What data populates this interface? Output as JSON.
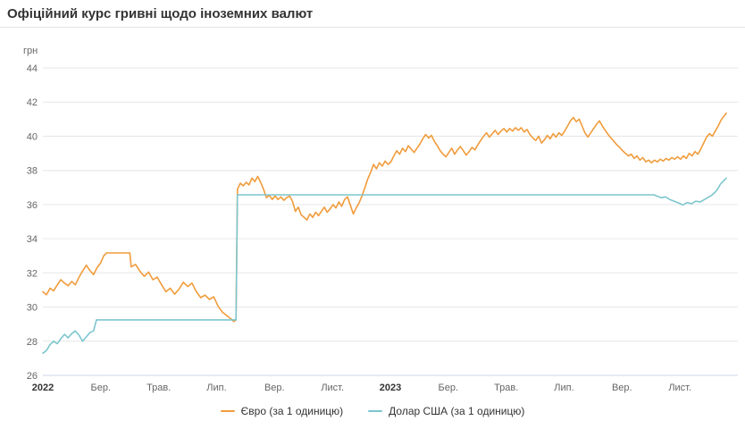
{
  "header": {
    "title": "Офіційний курс гривні щодо іноземних валют"
  },
  "chart_data": {
    "type": "line",
    "title": "Офіційний курс гривні щодо іноземних валют",
    "unit_label": "грн",
    "ylabel": "грн",
    "ylim": [
      26,
      44
    ],
    "yticks": [
      26,
      28,
      30,
      32,
      34,
      36,
      38,
      40,
      42,
      44
    ],
    "xlim_months": [
      0,
      24
    ],
    "grid": true,
    "legend_position": "bottom",
    "xticks": [
      {
        "pos": 0,
        "label": "2022",
        "is_year": true
      },
      {
        "pos": 2,
        "label": "Бер."
      },
      {
        "pos": 4,
        "label": "Трав."
      },
      {
        "pos": 6,
        "label": "Лип."
      },
      {
        "pos": 8,
        "label": "Вер."
      },
      {
        "pos": 10,
        "label": "Лист."
      },
      {
        "pos": 12,
        "label": "2023",
        "is_year": true
      },
      {
        "pos": 14,
        "label": "Бер."
      },
      {
        "pos": 16,
        "label": "Трав."
      },
      {
        "pos": 18,
        "label": "Лип."
      },
      {
        "pos": 20,
        "label": "Вер."
      },
      {
        "pos": 22,
        "label": "Лист."
      }
    ],
    "series": [
      {
        "name": "Євро (за 1 одиницю)",
        "color": "#f09c3c",
        "points": [
          [
            0,
            30.9
          ],
          [
            0.12,
            30.72
          ],
          [
            0.25,
            31.1
          ],
          [
            0.37,
            30.95
          ],
          [
            0.5,
            31.3
          ],
          [
            0.62,
            31.6
          ],
          [
            0.75,
            31.4
          ],
          [
            0.87,
            31.25
          ],
          [
            1,
            31.5
          ],
          [
            1.12,
            31.3
          ],
          [
            1.25,
            31.75
          ],
          [
            1.37,
            32.1
          ],
          [
            1.5,
            32.45
          ],
          [
            1.62,
            32.15
          ],
          [
            1.75,
            31.9
          ],
          [
            1.87,
            32.3
          ],
          [
            2,
            32.6
          ],
          [
            2.1,
            33
          ],
          [
            2.2,
            33.17
          ],
          [
            3,
            33.17
          ],
          [
            3.05,
            32.35
          ],
          [
            3.2,
            32.5
          ],
          [
            3.35,
            32.1
          ],
          [
            3.5,
            31.8
          ],
          [
            3.65,
            32.05
          ],
          [
            3.8,
            31.6
          ],
          [
            3.95,
            31.75
          ],
          [
            4.1,
            31.3
          ],
          [
            4.25,
            30.9
          ],
          [
            4.4,
            31.1
          ],
          [
            4.55,
            30.75
          ],
          [
            4.7,
            31.05
          ],
          [
            4.85,
            31.45
          ],
          [
            5,
            31.2
          ],
          [
            5.15,
            31.4
          ],
          [
            5.3,
            30.9
          ],
          [
            5.45,
            30.55
          ],
          [
            5.6,
            30.7
          ],
          [
            5.75,
            30.45
          ],
          [
            5.9,
            30.6
          ],
          [
            6.05,
            30.05
          ],
          [
            6.2,
            29.7
          ],
          [
            6.35,
            29.5
          ],
          [
            6.5,
            29.3
          ],
          [
            6.6,
            29.15
          ],
          [
            6.67,
            29.25
          ],
          [
            6.72,
            36.9
          ],
          [
            6.82,
            37.25
          ],
          [
            6.92,
            37.1
          ],
          [
            7.02,
            37.3
          ],
          [
            7.12,
            37.15
          ],
          [
            7.22,
            37.55
          ],
          [
            7.32,
            37.35
          ],
          [
            7.42,
            37.65
          ],
          [
            7.52,
            37.3
          ],
          [
            7.62,
            36.9
          ],
          [
            7.72,
            36.4
          ],
          [
            7.82,
            36.55
          ],
          [
            7.92,
            36.3
          ],
          [
            8.02,
            36.5
          ],
          [
            8.12,
            36.3
          ],
          [
            8.22,
            36.45
          ],
          [
            8.32,
            36.25
          ],
          [
            8.42,
            36.4
          ],
          [
            8.52,
            36.5
          ],
          [
            8.62,
            36.2
          ],
          [
            8.72,
            35.6
          ],
          [
            8.82,
            35.85
          ],
          [
            8.92,
            35.4
          ],
          [
            9.02,
            35.25
          ],
          [
            9.12,
            35.1
          ],
          [
            9.22,
            35.45
          ],
          [
            9.32,
            35.25
          ],
          [
            9.42,
            35.55
          ],
          [
            9.52,
            35.35
          ],
          [
            9.62,
            35.6
          ],
          [
            9.72,
            35.85
          ],
          [
            9.82,
            35.55
          ],
          [
            9.92,
            35.75
          ],
          [
            10.02,
            36
          ],
          [
            10.12,
            35.8
          ],
          [
            10.22,
            36.15
          ],
          [
            10.32,
            35.9
          ],
          [
            10.42,
            36.3
          ],
          [
            10.52,
            36.45
          ],
          [
            10.62,
            35.95
          ],
          [
            10.72,
            35.45
          ],
          [
            10.82,
            35.8
          ],
          [
            10.92,
            36.1
          ],
          [
            11.02,
            36.5
          ],
          [
            11.12,
            37
          ],
          [
            11.22,
            37.5
          ],
          [
            11.32,
            37.9
          ],
          [
            11.42,
            38.35
          ],
          [
            11.52,
            38.1
          ],
          [
            11.62,
            38.45
          ],
          [
            11.72,
            38.25
          ],
          [
            11.82,
            38.55
          ],
          [
            11.92,
            38.35
          ],
          [
            12.02,
            38.5
          ],
          [
            12.12,
            38.85
          ],
          [
            12.22,
            39.15
          ],
          [
            12.32,
            38.95
          ],
          [
            12.42,
            39.3
          ],
          [
            12.52,
            39.1
          ],
          [
            12.62,
            39.45
          ],
          [
            12.72,
            39.25
          ],
          [
            12.82,
            39.05
          ],
          [
            12.92,
            39.3
          ],
          [
            13.02,
            39.55
          ],
          [
            13.12,
            39.85
          ],
          [
            13.22,
            40.1
          ],
          [
            13.32,
            39.9
          ],
          [
            13.42,
            40.05
          ],
          [
            13.52,
            39.7
          ],
          [
            13.62,
            39.45
          ],
          [
            13.72,
            39.15
          ],
          [
            13.82,
            38.95
          ],
          [
            13.92,
            38.8
          ],
          [
            14.02,
            39.05
          ],
          [
            14.12,
            39.3
          ],
          [
            14.22,
            38.95
          ],
          [
            14.32,
            39.2
          ],
          [
            14.42,
            39.4
          ],
          [
            14.52,
            39.15
          ],
          [
            14.62,
            38.9
          ],
          [
            14.72,
            39.1
          ],
          [
            14.82,
            39.35
          ],
          [
            14.92,
            39.2
          ],
          [
            15.02,
            39.5
          ],
          [
            15.12,
            39.75
          ],
          [
            15.22,
            40
          ],
          [
            15.32,
            40.2
          ],
          [
            15.42,
            39.95
          ],
          [
            15.52,
            40.15
          ],
          [
            15.62,
            40.35
          ],
          [
            15.72,
            40.1
          ],
          [
            15.82,
            40.3
          ],
          [
            15.92,
            40.45
          ],
          [
            16.02,
            40.25
          ],
          [
            16.12,
            40.45
          ],
          [
            16.22,
            40.3
          ],
          [
            16.32,
            40.5
          ],
          [
            16.42,
            40.35
          ],
          [
            16.52,
            40.5
          ],
          [
            16.62,
            40.25
          ],
          [
            16.72,
            40.4
          ],
          [
            16.82,
            40.1
          ],
          [
            16.92,
            39.9
          ],
          [
            17.02,
            39.75
          ],
          [
            17.12,
            40
          ],
          [
            17.22,
            39.6
          ],
          [
            17.32,
            39.8
          ],
          [
            17.42,
            40.05
          ],
          [
            17.52,
            39.85
          ],
          [
            17.62,
            40.15
          ],
          [
            17.72,
            39.95
          ],
          [
            17.82,
            40.2
          ],
          [
            17.92,
            40.05
          ],
          [
            18.02,
            40.3
          ],
          [
            18.12,
            40.6
          ],
          [
            18.22,
            40.9
          ],
          [
            18.32,
            41.1
          ],
          [
            18.42,
            40.85
          ],
          [
            18.52,
            41
          ],
          [
            18.62,
            40.6
          ],
          [
            18.72,
            40.2
          ],
          [
            18.82,
            39.95
          ],
          [
            18.92,
            40.2
          ],
          [
            19.02,
            40.45
          ],
          [
            19.12,
            40.7
          ],
          [
            19.22,
            40.9
          ],
          [
            19.32,
            40.6
          ],
          [
            19.42,
            40.35
          ],
          [
            19.52,
            40.1
          ],
          [
            19.62,
            39.9
          ],
          [
            19.72,
            39.7
          ],
          [
            19.82,
            39.5
          ],
          [
            19.92,
            39.35
          ],
          [
            20.02,
            39.15
          ],
          [
            20.12,
            39
          ],
          [
            20.22,
            38.85
          ],
          [
            20.32,
            38.95
          ],
          [
            20.42,
            38.7
          ],
          [
            20.52,
            38.85
          ],
          [
            20.62,
            38.6
          ],
          [
            20.72,
            38.75
          ],
          [
            20.82,
            38.5
          ],
          [
            20.92,
            38.6
          ],
          [
            21.02,
            38.45
          ],
          [
            21.12,
            38.6
          ],
          [
            21.22,
            38.5
          ],
          [
            21.32,
            38.65
          ],
          [
            21.42,
            38.55
          ],
          [
            21.52,
            38.7
          ],
          [
            21.62,
            38.6
          ],
          [
            21.72,
            38.75
          ],
          [
            21.82,
            38.65
          ],
          [
            21.92,
            38.8
          ],
          [
            22.02,
            38.65
          ],
          [
            22.12,
            38.85
          ],
          [
            22.22,
            38.7
          ],
          [
            22.32,
            39
          ],
          [
            22.42,
            38.85
          ],
          [
            22.52,
            39.1
          ],
          [
            22.62,
            38.95
          ],
          [
            22.72,
            39.25
          ],
          [
            22.82,
            39.6
          ],
          [
            22.92,
            39.95
          ],
          [
            23.02,
            40.15
          ],
          [
            23.12,
            40
          ],
          [
            23.22,
            40.3
          ],
          [
            23.32,
            40.6
          ],
          [
            23.42,
            40.95
          ],
          [
            23.6,
            41.35
          ]
        ]
      },
      {
        "name": "Долар США (за 1 одиницю)",
        "color": "#7cc6ce",
        "points": [
          [
            0,
            27.3
          ],
          [
            0.12,
            27.45
          ],
          [
            0.25,
            27.8
          ],
          [
            0.37,
            28
          ],
          [
            0.5,
            27.85
          ],
          [
            0.62,
            28.15
          ],
          [
            0.75,
            28.4
          ],
          [
            0.87,
            28.2
          ],
          [
            1,
            28.45
          ],
          [
            1.12,
            28.6
          ],
          [
            1.25,
            28.35
          ],
          [
            1.37,
            28
          ],
          [
            1.5,
            28.25
          ],
          [
            1.62,
            28.5
          ],
          [
            1.75,
            28.6
          ],
          [
            1.85,
            29.25
          ],
          [
            6.67,
            29.25
          ],
          [
            6.72,
            36.57
          ],
          [
            21.1,
            36.57
          ],
          [
            21.2,
            36.5
          ],
          [
            21.35,
            36.4
          ],
          [
            21.5,
            36.45
          ],
          [
            21.65,
            36.3
          ],
          [
            21.8,
            36.2
          ],
          [
            21.95,
            36.1
          ],
          [
            22.1,
            35.98
          ],
          [
            22.25,
            36.12
          ],
          [
            22.4,
            36.05
          ],
          [
            22.55,
            36.2
          ],
          [
            22.7,
            36.15
          ],
          [
            22.85,
            36.3
          ],
          [
            23,
            36.45
          ],
          [
            23.1,
            36.55
          ],
          [
            23.2,
            36.7
          ],
          [
            23.3,
            36.9
          ],
          [
            23.4,
            37.2
          ],
          [
            23.6,
            37.55
          ]
        ]
      }
    ]
  }
}
